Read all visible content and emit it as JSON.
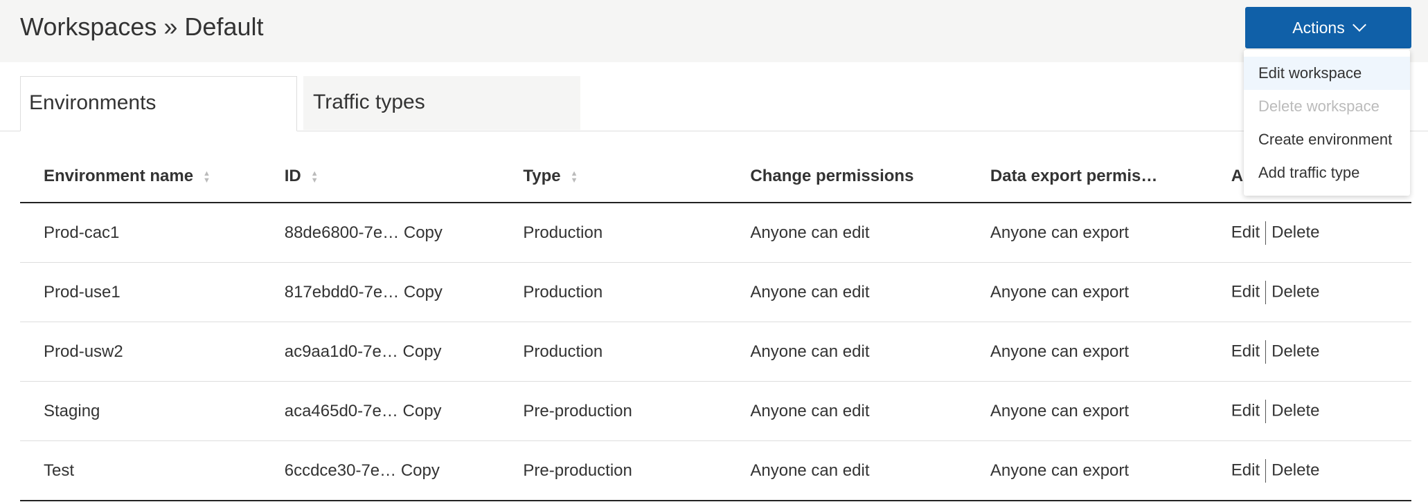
{
  "header": {
    "title": "Workspaces » Default",
    "actions_label": "Actions"
  },
  "menu": [
    {
      "label": "Edit workspace",
      "state": "hover"
    },
    {
      "label": "Delete workspace",
      "state": "disabled"
    },
    {
      "label": "Create environment",
      "state": "normal"
    },
    {
      "label": "Add traffic type",
      "state": "normal"
    }
  ],
  "tabs": [
    {
      "label": "Environments",
      "active": true
    },
    {
      "label": "Traffic types",
      "active": false
    }
  ],
  "table": {
    "columns": [
      "Environment name",
      "ID",
      "Type",
      "Change permissions",
      "Data export permis…",
      "Actio"
    ],
    "copy_label": "Copy",
    "edit_label": "Edit",
    "delete_label": "Delete",
    "rows": [
      {
        "name": "Prod-cac1",
        "id": "88de6800-7e…",
        "type": "Production",
        "change": "Anyone can edit",
        "export": "Anyone can export"
      },
      {
        "name": "Prod-use1",
        "id": "817ebdd0-7e…",
        "type": "Production",
        "change": "Anyone can edit",
        "export": "Anyone can export"
      },
      {
        "name": "Prod-usw2",
        "id": "ac9aa1d0-7e…",
        "type": "Production",
        "change": "Anyone can edit",
        "export": "Anyone can export"
      },
      {
        "name": "Staging",
        "id": "aca465d0-7e…",
        "type": "Pre-production",
        "change": "Anyone can edit",
        "export": "Anyone can export"
      },
      {
        "name": "Test",
        "id": "6ccdce30-7e…",
        "type": "Pre-production",
        "change": "Anyone can edit",
        "export": "Anyone can export"
      }
    ]
  },
  "colors": {
    "primary": "#1060a8",
    "header_bg": "#f5f5f4"
  }
}
